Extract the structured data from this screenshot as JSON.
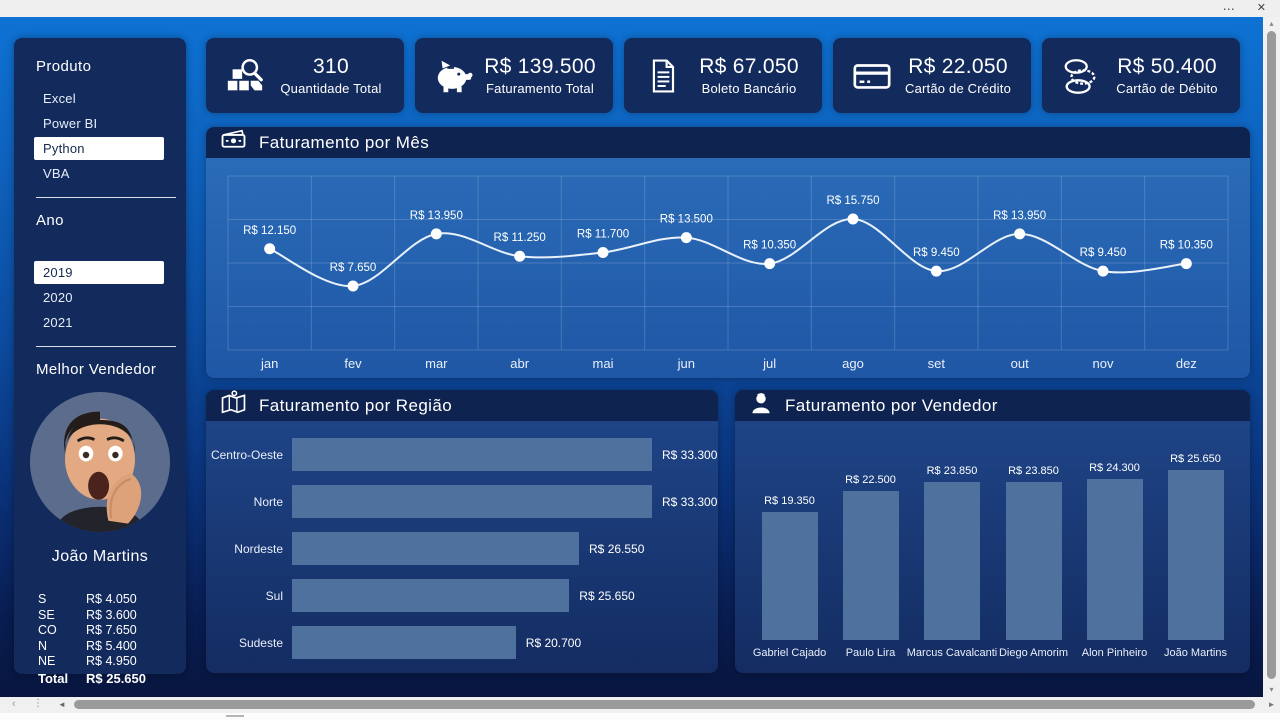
{
  "window": {
    "more_label": "⋯",
    "close_label": "✕"
  },
  "scrollbar": {
    "up": "▴",
    "down": "▾",
    "left": "◄",
    "right": "►",
    "dots": "⋮",
    "chevron": "‹"
  },
  "sidebar": {
    "produto": {
      "title": "Produto",
      "items": [
        {
          "label": "Excel",
          "selected": false
        },
        {
          "label": "Power BI",
          "selected": false
        },
        {
          "label": "Python",
          "selected": true
        },
        {
          "label": "VBA",
          "selected": false
        }
      ]
    },
    "ano": {
      "title": "Ano",
      "items": [
        {
          "label": "2019",
          "selected": true
        },
        {
          "label": "2020",
          "selected": false
        },
        {
          "label": "2021",
          "selected": false
        }
      ]
    },
    "vendedor": {
      "title": "Melhor Vendedor",
      "name": "João Martins",
      "rows": [
        {
          "label": "S",
          "value": "R$ 4.050"
        },
        {
          "label": "SE",
          "value": "R$ 3.600"
        },
        {
          "label": "CO",
          "value": "R$ 7.650"
        },
        {
          "label": "N",
          "value": "R$ 5.400"
        },
        {
          "label": "NE",
          "value": "R$ 4.950"
        }
      ],
      "total": {
        "label": "Total",
        "value": "R$ 25.650"
      }
    }
  },
  "kpis": [
    {
      "icon": "quantity-search-icon",
      "value": "310",
      "label": "Quantidade Total"
    },
    {
      "icon": "piggy-bank-icon",
      "value": "R$ 139.500",
      "label": "Faturamento Total"
    },
    {
      "icon": "invoice-icon",
      "value": "R$ 67.050",
      "label": "Boleto Bancário"
    },
    {
      "icon": "credit-card-icon",
      "value": "R$ 22.050",
      "label": "Cartão de Crédito"
    },
    {
      "icon": "coins-icon",
      "value": "R$ 50.400",
      "label": "Cartão de Débito"
    }
  ],
  "panels": {
    "mes": {
      "title": "Faturamento por Mês"
    },
    "regiao": {
      "title": "Faturamento por Região"
    },
    "vendedor": {
      "title": "Faturamento por Vendedor"
    }
  },
  "colors": {
    "accent_blue": "#0E72D4",
    "panel_navy": "#122A5C",
    "header_navy": "#0F2350",
    "bar_fill": "#4F719E",
    "line_color": "#E9F1FB",
    "marker_color": "#FFFFFF"
  },
  "chart_data": [
    {
      "type": "line",
      "title": "Faturamento por Mês",
      "categories": [
        "jan",
        "fev",
        "mar",
        "abr",
        "mai",
        "jun",
        "jul",
        "ago",
        "set",
        "out",
        "nov",
        "dez"
      ],
      "values": [
        12150,
        7650,
        13950,
        11250,
        11700,
        13500,
        10350,
        15750,
        9450,
        13950,
        9450,
        10350
      ],
      "labels": [
        "R$ 12.150",
        "R$ 7.650",
        "R$ 13.950",
        "R$ 11.250",
        "R$ 11.700",
        "R$ 13.500",
        "R$ 10.350",
        "R$ 15.750",
        "R$ 9.450",
        "R$ 13.950",
        "R$ 9.450",
        "R$ 10.350"
      ],
      "xlabel": "",
      "ylabel": "",
      "grid": true,
      "legend": "none",
      "line_color": "#E9F1FB",
      "marker_color": "#FFFFFF"
    },
    {
      "type": "bar",
      "orientation": "horizontal",
      "title": "Faturamento por Região",
      "categories": [
        "Centro-Oeste",
        "Norte",
        "Nordeste",
        "Sul",
        "Sudeste"
      ],
      "values": [
        33300,
        33300,
        26550,
        25650,
        20700
      ],
      "labels": [
        "R$ 33.300",
        "R$ 33.300",
        "R$ 26.550",
        "R$ 25.650",
        "R$ 20.700"
      ],
      "xlim": [
        0,
        33300
      ],
      "grid": false,
      "legend": "none",
      "bar_color": "#4F719E"
    },
    {
      "type": "bar",
      "orientation": "vertical",
      "title": "Faturamento por Vendedor",
      "categories": [
        "Gabriel Cajado",
        "Paulo Lira",
        "Marcus Cavalcanti",
        "Diego Amorim",
        "Alon Pinheiro",
        "João Martins"
      ],
      "values": [
        19350,
        22500,
        23850,
        23850,
        24300,
        25650
      ],
      "labels": [
        "R$ 19.350",
        "R$ 22.500",
        "R$ 23.850",
        "R$ 23.850",
        "R$ 24.300",
        "R$ 25.650"
      ],
      "ylim": [
        0,
        25650
      ],
      "grid": false,
      "legend": "none",
      "bar_color": "#4F719E"
    }
  ]
}
